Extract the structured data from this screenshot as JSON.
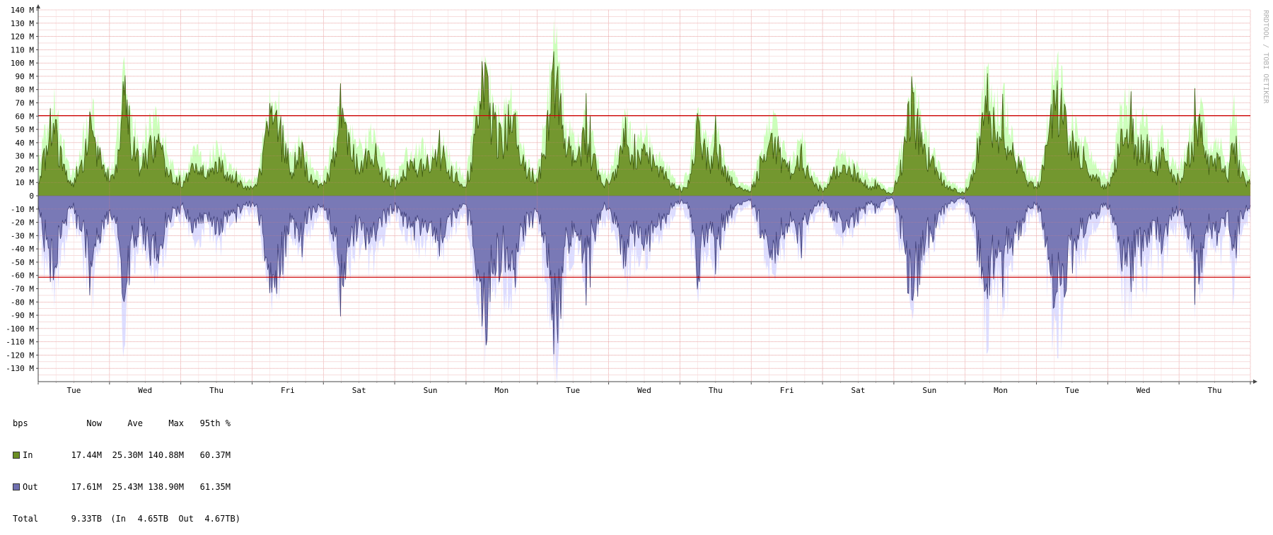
{
  "watermark": "RRDTOOL / TOBI OETIKER",
  "chart_data": {
    "type": "area",
    "y_unit": "bps",
    "ylim": [
      -140000000,
      140000000
    ],
    "y_ticks": [
      {
        "value": 140000000,
        "label": "140 M"
      },
      {
        "value": 130000000,
        "label": "130 M"
      },
      {
        "value": 120000000,
        "label": "120 M"
      },
      {
        "value": 110000000,
        "label": "110 M"
      },
      {
        "value": 100000000,
        "label": "100 M"
      },
      {
        "value": 90000000,
        "label": "90 M"
      },
      {
        "value": 80000000,
        "label": "80 M"
      },
      {
        "value": 70000000,
        "label": "70 M"
      },
      {
        "value": 60000000,
        "label": "60 M"
      },
      {
        "value": 50000000,
        "label": "50 M"
      },
      {
        "value": 40000000,
        "label": "40 M"
      },
      {
        "value": 30000000,
        "label": "30 M"
      },
      {
        "value": 20000000,
        "label": "20 M"
      },
      {
        "value": 10000000,
        "label": "10 M"
      },
      {
        "value": 0,
        "label": "0"
      },
      {
        "value": -10000000,
        "label": "-10 M"
      },
      {
        "value": -20000000,
        "label": "-20 M"
      },
      {
        "value": -30000000,
        "label": "-30 M"
      },
      {
        "value": -40000000,
        "label": "-40 M"
      },
      {
        "value": -50000000,
        "label": "-50 M"
      },
      {
        "value": -60000000,
        "label": "-60 M"
      },
      {
        "value": -70000000,
        "label": "-70 M"
      },
      {
        "value": -80000000,
        "label": "-80 M"
      },
      {
        "value": -90000000,
        "label": "-90 M"
      },
      {
        "value": -100000000,
        "label": "-100 M"
      },
      {
        "value": -110000000,
        "label": "-110 M"
      },
      {
        "value": -120000000,
        "label": "-120 M"
      },
      {
        "value": -130000000,
        "label": "-130 M"
      }
    ],
    "x_labels": [
      "Tue",
      "Wed",
      "Thu",
      "Fri",
      "Sat",
      "Sun",
      "Mon",
      "Tue",
      "Wed",
      "Thu",
      "Fri",
      "Sat",
      "Sun",
      "Mon",
      "Tue",
      "Wed",
      "Thu"
    ],
    "x_range_days": [
      0,
      17
    ],
    "grid": true,
    "percentile_95": {
      "in": 60370000,
      "out": -61350000,
      "color": "#cc0000"
    },
    "series": [
      {
        "name": "In",
        "color": "#6b8e23",
        "max_color": "#ccffbb",
        "daily": [
          {
            "day": "Tue",
            "avg": [
              14,
              24,
              38,
              58,
              52,
              30,
              18,
              12,
              10,
              18,
              30,
              46,
              62,
              40,
              26,
              16
            ],
            "peak": [
              30,
              42,
              55,
              72,
              78,
              60,
              36,
              22,
              18,
              30,
              48,
              64,
              78,
              58,
              40,
              24
            ]
          },
          {
            "day": "Wed",
            "avg": [
              10,
              16,
              36,
              82,
              60,
              44,
              30,
              22,
              28,
              36,
              40,
              38,
              30,
              22,
              16,
              12
            ],
            "peak": [
              20,
              30,
              60,
              105,
              90,
              68,
              52,
              40,
              48,
              56,
              60,
              58,
              48,
              38,
              28,
              22
            ]
          },
          {
            "day": "Thu",
            "avg": [
              8,
              12,
              18,
              22,
              20,
              18,
              16,
              20,
              24,
              22,
              18,
              14,
              12,
              10,
              8,
              6
            ],
            "peak": [
              16,
              22,
              30,
              36,
              34,
              30,
              28,
              34,
              40,
              36,
              30,
              26,
              22,
              18,
              14,
              12
            ]
          },
          {
            "day": "Fri",
            "avg": [
              4,
              8,
              20,
              40,
              62,
              50,
              58,
              36,
              28,
              22,
              30,
              34,
              22,
              16,
              12,
              8
            ],
            "peak": [
              10,
              16,
              34,
              60,
              76,
              66,
              72,
              52,
              44,
              36,
              46,
              50,
              36,
              28,
              22,
              16
            ]
          },
          {
            "day": "Sat",
            "avg": [
              8,
              14,
              28,
              44,
              56,
              44,
              34,
              30,
              26,
              22,
              34,
              40,
              30,
              22,
              16,
              10
            ],
            "peak": [
              16,
              26,
              44,
              62,
              72,
              60,
              50,
              46,
              40,
              36,
              50,
              56,
              44,
              34,
              26,
              18
            ]
          },
          {
            "day": "Sun",
            "avg": [
              6,
              10,
              16,
              22,
              24,
              22,
              26,
              22,
              20,
              26,
              34,
              30,
              22,
              18,
              14,
              10
            ],
            "peak": [
              14,
              20,
              28,
              36,
              38,
              36,
              40,
              36,
              34,
              40,
              50,
              46,
              36,
              30,
              24,
              18
            ]
          },
          {
            "day": "Mon",
            "avg": [
              10,
              22,
              44,
              70,
              86,
              78,
              60,
              46,
              40,
              52,
              58,
              46,
              34,
              24,
              18,
              12
            ],
            "peak": [
              22,
              38,
              66,
              92,
              100,
              96,
              80,
              64,
              58,
              72,
              78,
              66,
              50,
              38,
              28,
              20
            ]
          },
          {
            "day": "Tue",
            "avg": [
              12,
              26,
              48,
              84,
              94,
              70,
              56,
              40,
              34,
              28,
              38,
              46,
              34,
              24,
              18,
              10
            ],
            "peak": [
              24,
              42,
              70,
              108,
              132,
              96,
              78,
              58,
              50,
              44,
              56,
              64,
              50,
              36,
              28,
              18
            ]
          },
          {
            "day": "Wed",
            "avg": [
              8,
              14,
              26,
              42,
              48,
              34,
              30,
              28,
              34,
              30,
              24,
              20,
              18,
              14,
              10,
              6
            ],
            "peak": [
              18,
              26,
              40,
              58,
              64,
              50,
              46,
              44,
              52,
              46,
              38,
              32,
              30,
              24,
              18,
              12
            ]
          },
          {
            "day": "Thu",
            "avg": [
              4,
              6,
              10,
              30,
              54,
              44,
              32,
              22,
              40,
              30,
              20,
              14,
              10,
              8,
              6,
              4
            ],
            "peak": [
              10,
              14,
              20,
              46,
              72,
              60,
              48,
              36,
              58,
              44,
              32,
              24,
              18,
              14,
              12,
              8
            ]
          },
          {
            "day": "Fri",
            "avg": [
              6,
              12,
              22,
              30,
              40,
              44,
              36,
              28,
              22,
              20,
              18,
              34,
              24,
              16,
              10,
              6
            ],
            "peak": [
              12,
              20,
              34,
              44,
              56,
              60,
              52,
              42,
              36,
              34,
              30,
              50,
              38,
              26,
              18,
              12
            ]
          },
          {
            "day": "Sat",
            "avg": [
              4,
              8,
              14,
              20,
              22,
              20,
              18,
              16,
              14,
              12,
              8,
              6,
              8,
              6,
              4,
              2
            ],
            "peak": [
              10,
              14,
              24,
              34,
              36,
              32,
              30,
              28,
              26,
              22,
              16,
              12,
              14,
              12,
              8,
              6
            ]
          },
          {
            "day": "Sun",
            "avg": [
              6,
              14,
              30,
              52,
              72,
              58,
              44,
              34,
              28,
              22,
              16,
              10,
              8,
              6,
              4,
              2
            ],
            "peak": [
              14,
              26,
              48,
              74,
              90,
              80,
              66,
              52,
              44,
              36,
              28,
              18,
              14,
              12,
              8,
              6
            ]
          },
          {
            "day": "Mon",
            "avg": [
              4,
              10,
              20,
              38,
              56,
              74,
              60,
              50,
              58,
              52,
              40,
              30,
              24,
              18,
              12,
              8
            ],
            "peak": [
              10,
              18,
              34,
              58,
              86,
              96,
              80,
              70,
              82,
              74,
              58,
              44,
              36,
              28,
              20,
              14
            ]
          },
          {
            "day": "Tue",
            "avg": [
              6,
              14,
              30,
              56,
              92,
              70,
              60,
              48,
              40,
              34,
              28,
              24,
              20,
              16,
              12,
              8
            ],
            "peak": [
              12,
              24,
              46,
              78,
              110,
              98,
              84,
              70,
              60,
              52,
              44,
              40,
              34,
              28,
              22,
              16
            ]
          },
          {
            "day": "Wed",
            "avg": [
              8,
              16,
              30,
              48,
              62,
              54,
              42,
              36,
              40,
              34,
              28,
              24,
              32,
              26,
              20,
              14
            ],
            "peak": [
              16,
              28,
              46,
              70,
              82,
              76,
              62,
              54,
              60,
              52,
              44,
              40,
              50,
              42,
              34,
              24
            ]
          },
          {
            "day": "Thu",
            "avg": [
              10,
              18,
              30,
              40,
              56,
              46,
              34,
              26,
              22,
              28,
              20,
              14,
              60,
              30,
              16,
              10
            ],
            "peak": [
              20,
              30,
              46,
              58,
              74,
              66,
              52,
              42,
              38,
              46,
              34,
              24,
              92,
              50,
              28,
              18
            ]
          }
        ]
      },
      {
        "name": "Out",
        "color": "#7070b0",
        "max_color": "#ddddff"
      }
    ]
  },
  "legend": {
    "header": [
      "bps",
      "Now",
      "Ave",
      "Max",
      "95th %"
    ],
    "rows": [
      {
        "label": "In",
        "color": "#6b8e23",
        "now": "17.44M",
        "ave": "25.30M",
        "max": "140.88M",
        "p95": "60.37M"
      },
      {
        "label": "Out",
        "color": "#7070b0",
        "now": "17.61M",
        "ave": "25.43M",
        "max": "138.90M",
        "p95": "61.35M"
      }
    ],
    "total": {
      "label": "Total",
      "value": "9.33TB",
      "in_label": "(In",
      "in_value": "4.65TB",
      "out_label": "Out",
      "out_value": "4.67TB)"
    }
  }
}
